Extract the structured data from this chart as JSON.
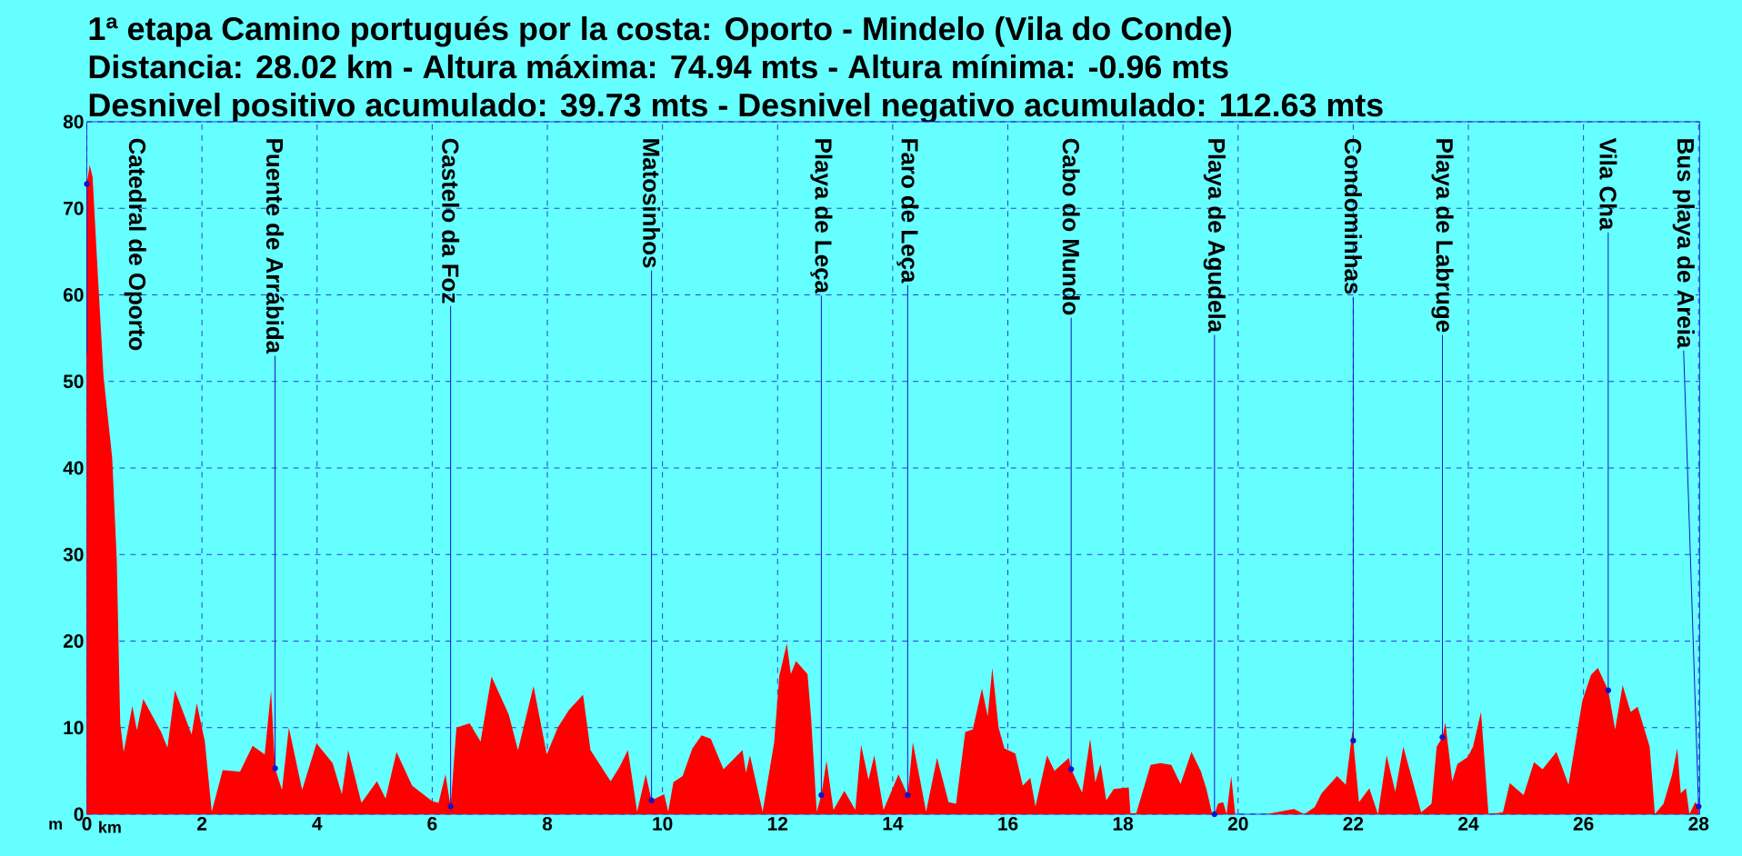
{
  "chart_data": {
    "type": "area",
    "title": "1ª etapa Camino portugués por la costa: Oporto - Mindelo (Vila do Conde)",
    "subtitle": "Distancia: 28.02 km - Altura máxima: 74.94 mts - Altura mínima: -0.96 mts",
    "xlabel": "km",
    "ylabel": "m",
    "color": "#ff0000",
    "grid": true,
    "xlim": [
      0,
      28.02
    ],
    "ylim": [
      0,
      80
    ],
    "xticks": [
      0,
      2,
      4,
      6,
      8,
      10,
      12,
      14,
      16,
      18,
      20,
      22,
      24,
      26,
      28
    ],
    "yticks": [
      0,
      10,
      20,
      30,
      40,
      50,
      60,
      70,
      80
    ],
    "x": [
      0,
      0.05,
      0.1,
      0.18,
      0.29,
      0.44,
      0.52,
      0.58,
      0.64,
      0.79,
      0.87,
      0.98,
      1.29,
      1.4,
      1.53,
      1.82,
      1.91,
      2.05,
      2.17,
      2.36,
      2.66,
      2.88,
      3.09,
      3.2,
      3.27,
      3.39,
      3.51,
      3.74,
      3.99,
      4.27,
      4.43,
      4.54,
      4.77,
      5.04,
      5.19,
      5.38,
      5.65,
      6.0,
      6.11,
      6.23,
      6.32,
      6.42,
      6.65,
      6.84,
      7.03,
      7.33,
      7.49,
      7.76,
      7.99,
      8.18,
      8.37,
      8.62,
      8.75,
      9.1,
      9.25,
      9.4,
      9.56,
      9.71,
      9.81,
      10.03,
      10.1,
      10.19,
      10.35,
      10.52,
      10.68,
      10.84,
      11.06,
      11.39,
      11.45,
      11.52,
      11.74,
      11.94,
      12.03,
      12.16,
      12.23,
      12.32,
      12.52,
      12.58,
      12.68,
      12.76,
      12.85,
      12.97,
      13.16,
      13.35,
      13.45,
      13.58,
      13.68,
      13.84,
      14.1,
      14.26,
      14.35,
      14.58,
      14.77,
      14.97,
      15.1,
      15.26,
      15.39,
      15.55,
      15.65,
      15.73,
      15.84,
      15.94,
      16.13,
      16.26,
      16.39,
      16.48,
      16.68,
      16.81,
      17.06,
      17.1,
      17.29,
      17.43,
      17.52,
      17.61,
      17.71,
      17.84,
      18.1,
      18.13,
      18.23,
      18.48,
      18.65,
      18.84,
      19.0,
      19.19,
      19.35,
      19.45,
      19.55,
      19.59,
      19.65,
      19.74,
      19.8,
      19.88,
      19.95,
      20.49,
      20.97,
      21.15,
      21.33,
      21.45,
      21.72,
      21.87,
      21.99,
      22.0,
      22.1,
      22.28,
      22.43,
      22.58,
      22.73,
      22.87,
      23.18,
      23.36,
      23.45,
      23.55,
      23.6,
      23.72,
      23.81,
      23.99,
      24.08,
      24.22,
      24.35,
      24.6,
      24.72,
      24.96,
      25.14,
      25.29,
      25.53,
      25.74,
      25.98,
      26.13,
      26.25,
      26.43,
      26.55,
      26.68,
      26.82,
      26.94,
      27.15,
      27.24,
      27.39,
      27.54,
      27.63,
      27.69,
      27.78,
      27.84,
      27.94,
      28.0
    ],
    "values": [
      72.8,
      75,
      73.6,
      63.7,
      50.6,
      41.2,
      29.4,
      10.5,
      7.2,
      12.5,
      9.7,
      13.3,
      9.5,
      7.7,
      14.3,
      9.2,
      12.8,
      8.4,
      0.3,
      5.1,
      4.9,
      7.9,
      6.9,
      14.3,
      5.3,
      2.8,
      10,
      2.8,
      8.2,
      5.9,
      2.3,
      7.4,
      1.3,
      3.8,
      1.8,
      7.2,
      3.3,
      1.5,
      1.3,
      4.6,
      0.9,
      10,
      10.5,
      8.4,
      15.9,
      11.5,
      7.4,
      14.8,
      6.9,
      10,
      12,
      13.8,
      7.4,
      3.8,
      5.4,
      7.4,
      0.3,
      4.6,
      1.6,
      2.3,
      0.3,
      3.7,
      4.4,
      7.6,
      9.1,
      8.7,
      5.2,
      7.4,
      4.8,
      6.8,
      0.3,
      8.3,
      16,
      19.7,
      16.2,
      17.7,
      16.2,
      11.3,
      0.3,
      2.2,
      6.2,
      0.5,
      2.7,
      0.5,
      8,
      4,
      6.8,
      0.5,
      4.6,
      2.2,
      8.3,
      0.3,
      6.5,
      1.4,
      1.2,
      9.5,
      9.8,
      14.5,
      11.3,
      16.9,
      10,
      7.6,
      7,
      3.3,
      4.2,
      0.9,
      6.8,
      5,
      6.5,
      5.2,
      2.5,
      8.7,
      3.7,
      5.8,
      1.6,
      2.9,
      3.1,
      0.1,
      0.1,
      5.7,
      5.9,
      5.7,
      3.5,
      7.2,
      5,
      2.9,
      0,
      0,
      1.2,
      1.4,
      0,
      4.4,
      0,
      0,
      0.6,
      0,
      0.8,
      2.4,
      4.4,
      3.4,
      9.8,
      8.5,
      1.4,
      3,
      0,
      6.8,
      2.6,
      7.8,
      0.2,
      1.2,
      7.8,
      8.9,
      10.6,
      3.8,
      5.8,
      6.6,
      7.8,
      11.8,
      0,
      0.2,
      3.6,
      2.2,
      6,
      5.2,
      7.2,
      3.4,
      13.1,
      16.1,
      16.9,
      14.3,
      9.8,
      14.9,
      11.8,
      12.4,
      7.8,
      0,
      1.2,
      4.6,
      7.6,
      2.4,
      3,
      0,
      1.4,
      0.9
    ],
    "annotations": [
      "Desnivel positivo acumulado: 39.73 mts - Desnivel negativo acumulado: 112.63 mts",
      {
        "text": "Catedral de Oporto",
        "x": 0,
        "y": 72.8
      },
      {
        "text": "Puente de Arrábida",
        "x": 3.27,
        "y": 5.3
      },
      {
        "text": "Castelo da Foz",
        "x": 6.32,
        "y": 0.9
      },
      {
        "text": "Matosinhos",
        "x": 9.81,
        "y": 1.6
      },
      {
        "text": "Playa de Leça",
        "x": 12.76,
        "y": 2.2
      },
      {
        "text": "Faro de Leça",
        "x": 14.26,
        "y": 2.2
      },
      {
        "text": "Cabo do Mundo",
        "x": 17.1,
        "y": 5.2
      },
      {
        "text": "Playa de Agudela",
        "x": 19.59,
        "y": 0
      },
      {
        "text": "Condominhas",
        "x": 22.0,
        "y": 8.5
      },
      {
        "text": "Playa de Labruge",
        "x": 23.55,
        "y": 8.9
      },
      {
        "text": "Vila Cha",
        "x": 26.43,
        "y": 14.3
      },
      {
        "text": "Bus playa de Areia",
        "x": 28.0,
        "y": 0.9
      }
    ]
  }
}
